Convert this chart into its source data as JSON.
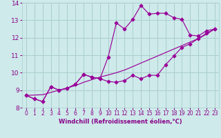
{
  "xlabel": "Windchill (Refroidissement éolien,°C)",
  "bg_color": "#ceeaea",
  "grid_color": "#aacece",
  "line_color": "#990099",
  "x_data": [
    0,
    1,
    2,
    3,
    4,
    5,
    6,
    7,
    8,
    9,
    10,
    11,
    12,
    13,
    14,
    15,
    16,
    17,
    18,
    19,
    20,
    21,
    22,
    23
  ],
  "series1": [
    8.7,
    8.5,
    8.35,
    9.2,
    9.0,
    9.1,
    9.35,
    9.9,
    9.75,
    9.65,
    10.9,
    12.85,
    12.5,
    13.05,
    13.85,
    13.35,
    13.4,
    13.4,
    13.15,
    13.05,
    12.15,
    12.1,
    12.4,
    12.5
  ],
  "series2": [
    8.7,
    8.5,
    8.35,
    9.2,
    9.0,
    9.1,
    9.35,
    9.9,
    9.75,
    9.65,
    9.5,
    9.45,
    9.55,
    9.85,
    9.65,
    9.85,
    9.85,
    10.45,
    10.95,
    11.45,
    11.65,
    11.95,
    12.25,
    12.5
  ],
  "series3": [
    8.7,
    8.72,
    8.74,
    8.87,
    9.0,
    9.13,
    9.26,
    9.45,
    9.6,
    9.75,
    9.87,
    10.0,
    10.15,
    10.35,
    10.55,
    10.75,
    10.95,
    11.15,
    11.35,
    11.55,
    11.75,
    11.95,
    12.2,
    12.5
  ],
  "ylim": [
    8.0,
    14.0
  ],
  "xlim_min": -0.5,
  "xlim_max": 23.5,
  "yticks": [
    8,
    9,
    10,
    11,
    12,
    13,
    14
  ],
  "xticks": [
    0,
    1,
    2,
    3,
    4,
    5,
    6,
    7,
    8,
    9,
    10,
    11,
    12,
    13,
    14,
    15,
    16,
    17,
    18,
    19,
    20,
    21,
    22,
    23
  ],
  "tick_color": "#880088",
  "xlabel_color": "#880088",
  "xlabel_fontsize": 6.0,
  "ytick_fontsize": 6.5,
  "xtick_fontsize": 5.5
}
